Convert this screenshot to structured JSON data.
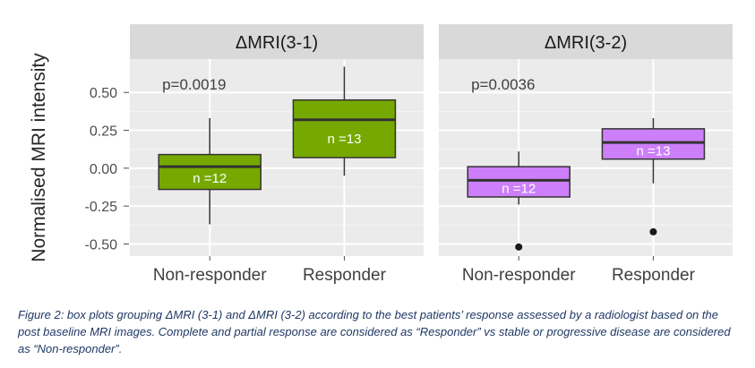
{
  "chart_data": {
    "type": "boxplot",
    "ylabel": "Normalised MRI intensity",
    "ylim": [
      -0.58,
      0.72
    ],
    "yticks": [
      -0.5,
      -0.25,
      0.0,
      0.25,
      0.5
    ],
    "ytick_labels": [
      "-0.50",
      "-0.25",
      "0.00",
      "0.25",
      "0.50"
    ],
    "categories": [
      "Non-responder",
      "Responder"
    ],
    "grid": true,
    "facets": [
      {
        "title": "ΔMRI(3-1)",
        "annotation": "p=0.0019",
        "color": "#76a900",
        "label_color": "#ffffff",
        "groups": [
          {
            "category": "Non-responder",
            "whisker_low": -0.37,
            "q1": -0.14,
            "median": 0.01,
            "q3": 0.09,
            "whisker_high": 0.33,
            "outliers": [],
            "label": "n =12"
          },
          {
            "category": "Responder",
            "whisker_low": -0.05,
            "q1": 0.07,
            "median": 0.32,
            "q3": 0.45,
            "whisker_high": 0.67,
            "outliers": [],
            "label": "n =13"
          }
        ]
      },
      {
        "title": "ΔMRI(3-2)",
        "annotation": "p=0.0036",
        "color": "#cc7ff8",
        "label_color": "#ffffff",
        "groups": [
          {
            "category": "Non-responder",
            "whisker_low": -0.24,
            "q1": -0.19,
            "median": -0.08,
            "q3": 0.01,
            "whisker_high": 0.11,
            "outliers": [
              -0.52
            ],
            "label": "n =12"
          },
          {
            "category": "Responder",
            "whisker_low": -0.1,
            "q1": 0.06,
            "median": 0.17,
            "q3": 0.26,
            "whisker_high": 0.33,
            "outliers": [
              -0.42
            ],
            "label": "n =13"
          }
        ]
      }
    ]
  },
  "caption": "Figure 2: box plots grouping ΔMRI (3-1) and ΔMRI (3-2) according to the best patients’ response assessed by a radiologist based on the post baseline MRI images. Complete and partial response are considered as “Responder” vs stable or progressive disease are considered as “Non-responder”."
}
